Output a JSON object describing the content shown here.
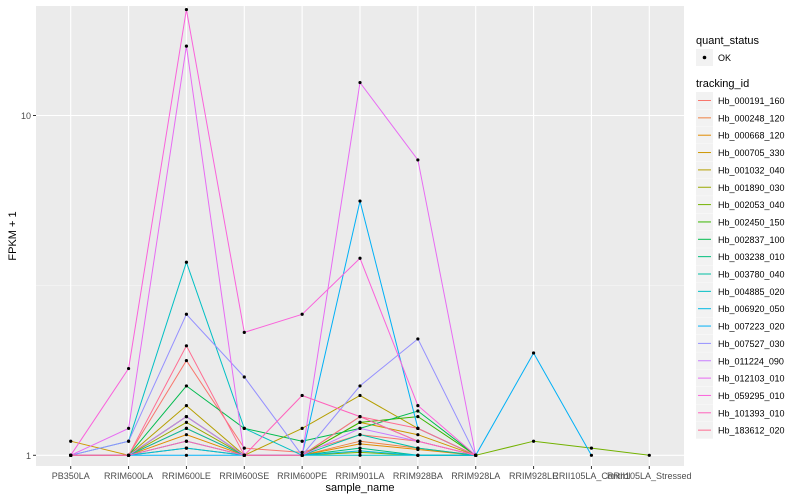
{
  "chart_data": {
    "type": "line",
    "xlabel": "sample_name",
    "ylabel": "FPKM + 1",
    "yscale": "log10",
    "ylim": [
      0.93,
      21
    ],
    "yticks": [
      1,
      10
    ],
    "ytick_labels": [
      "1",
      "10"
    ],
    "categories": [
      "PB350LA",
      "RRIM600LA",
      "RRIM600LE",
      "RRIM600SE",
      "RRIM600PE",
      "RRIM901LA",
      "RRIM928BA",
      "RRIM928LA",
      "RRIM928LE",
      "RRII105LA_Control",
      "RRII105LA_Stressed"
    ],
    "legend": {
      "position": "right",
      "quant_title": "quant_status",
      "quant_entries": [
        "OK"
      ],
      "tracking_title": "tracking_id"
    },
    "series": [
      {
        "name": "Hb_000191_160",
        "color": "#F8766D",
        "values": [
          1.0,
          1.0,
          1.9,
          1.05,
          1.02,
          1.15,
          1.1,
          1.0,
          null,
          null,
          null
        ]
      },
      {
        "name": "Hb_000248_120",
        "color": "#EE8043",
        "values": [
          1.0,
          1.0,
          1.2,
          1.0,
          1.0,
          1.1,
          1.05,
          1.0,
          null,
          null,
          null
        ]
      },
      {
        "name": "Hb_000668_120",
        "color": "#E08B00",
        "values": [
          1.0,
          1.0,
          1.15,
          1.0,
          1.0,
          1.08,
          1.04,
          1.0,
          null,
          null,
          null
        ]
      },
      {
        "name": "Hb_000705_330",
        "color": "#CD9600",
        "values": [
          1.1,
          1.0,
          1.3,
          1.0,
          1.0,
          1.25,
          1.15,
          1.0,
          null,
          null,
          null
        ]
      },
      {
        "name": "Hb_001032_040",
        "color": "#B59F00",
        "values": [
          1.0,
          1.0,
          1.4,
          1.0,
          1.2,
          1.5,
          1.2,
          1.0,
          null,
          null,
          null
        ]
      },
      {
        "name": "Hb_001890_030",
        "color": "#99A800",
        "values": [
          1.0,
          1.0,
          1.25,
          1.0,
          1.0,
          1.3,
          1.1,
          1.0,
          null,
          null,
          null
        ]
      },
      {
        "name": "Hb_002053_040",
        "color": "#73B200",
        "values": [
          1.0,
          1.0,
          1.05,
          1.0,
          1.0,
          1.02,
          1.0,
          1.0,
          1.1,
          1.05,
          1.0
        ]
      },
      {
        "name": "Hb_002450_150",
        "color": "#39B600",
        "values": [
          1.0,
          1.0,
          1.3,
          1.0,
          1.0,
          1.25,
          1.3,
          1.0,
          null,
          null,
          null
        ]
      },
      {
        "name": "Hb_002837_100",
        "color": "#00BB4E",
        "values": [
          1.0,
          1.0,
          1.6,
          1.2,
          1.1,
          1.2,
          1.35,
          1.0,
          null,
          null,
          null
        ]
      },
      {
        "name": "Hb_003238_010",
        "color": "#00BE7D",
        "values": [
          1.0,
          1.0,
          1.1,
          1.0,
          1.0,
          1.05,
          1.0,
          1.0,
          null,
          null,
          null
        ]
      },
      {
        "name": "Hb_003780_040",
        "color": "#00BFA2",
        "values": [
          1.0,
          1.0,
          1.2,
          1.0,
          1.0,
          1.15,
          1.05,
          1.0,
          null,
          null,
          null
        ]
      },
      {
        "name": "Hb_004885_020",
        "color": "#00BFC4",
        "values": [
          1.0,
          1.1,
          3.7,
          1.2,
          1.0,
          1.0,
          1.0,
          1.0,
          null,
          null,
          null
        ]
      },
      {
        "name": "Hb_006920_050",
        "color": "#00B9E3",
        "values": [
          1.0,
          1.0,
          1.05,
          1.0,
          1.0,
          1.03,
          1.0,
          1.0,
          null,
          null,
          null
        ]
      },
      {
        "name": "Hb_007223_020",
        "color": "#00B0F6",
        "values": [
          1.0,
          1.0,
          1.0,
          1.0,
          1.0,
          5.6,
          1.2,
          1.0,
          2.0,
          1.0,
          null
        ]
      },
      {
        "name": "Hb_007527_030",
        "color": "#9590FF",
        "values": [
          1.0,
          1.1,
          2.6,
          1.7,
          1.0,
          1.6,
          2.2,
          1.0,
          null,
          null,
          null
        ]
      },
      {
        "name": "Hb_011224_090",
        "color": "#C77CFF",
        "values": [
          1.0,
          1.0,
          1.3,
          1.0,
          1.0,
          1.2,
          1.1,
          1.0,
          null,
          null,
          null
        ]
      },
      {
        "name": "Hb_012103_010",
        "color": "#E76BF3",
        "values": [
          1.0,
          1.2,
          16.0,
          1.0,
          1.0,
          12.5,
          7.4,
          1.0,
          null,
          null,
          null
        ]
      },
      {
        "name": "Hb_059295_010",
        "color": "#FA62DB",
        "values": [
          1.0,
          1.8,
          20.5,
          2.3,
          2.6,
          3.8,
          1.4,
          1.0,
          null,
          null,
          null
        ]
      },
      {
        "name": "Hb_101393_010",
        "color": "#FF62BC",
        "values": [
          1.0,
          1.0,
          1.1,
          1.0,
          1.5,
          1.3,
          1.1,
          1.0,
          null,
          null,
          null
        ]
      },
      {
        "name": "Hb_183612_020",
        "color": "#FF6C91",
        "values": [
          1.0,
          1.0,
          2.1,
          1.0,
          1.0,
          1.3,
          1.2,
          1.0,
          null,
          null,
          null
        ]
      }
    ]
  }
}
